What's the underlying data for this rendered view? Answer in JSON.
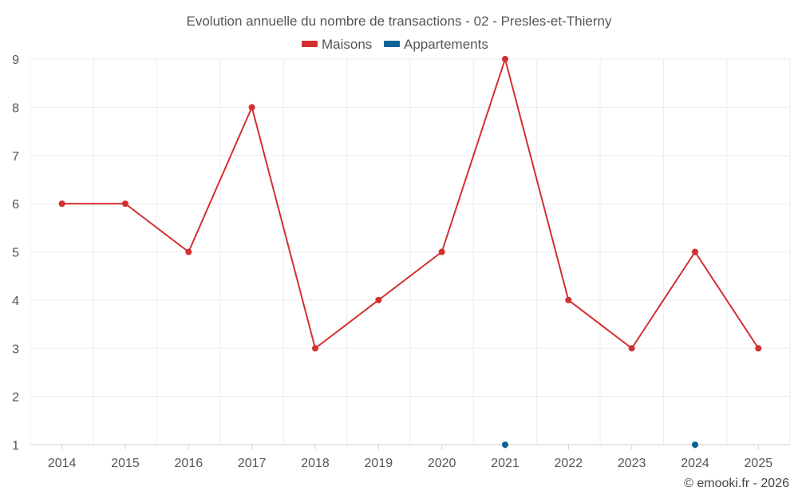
{
  "chart_data": {
    "type": "line",
    "title": "Evolution annuelle du nombre de transactions - 02 - Presles-et-Thierny",
    "categories": [
      "2014",
      "2015",
      "2016",
      "2017",
      "2018",
      "2019",
      "2020",
      "2021",
      "2022",
      "2023",
      "2024",
      "2025"
    ],
    "yticks": [
      "1",
      "2",
      "3",
      "4",
      "5",
      "6",
      "7",
      "8",
      "9"
    ],
    "ylim": [
      1,
      9
    ],
    "grid": true,
    "legend_position": "top-center",
    "series": [
      {
        "name": "Maisons",
        "color": "#d32f2f",
        "values": [
          6,
          6,
          5,
          8,
          3,
          4,
          5,
          9,
          4,
          3,
          5,
          3
        ]
      },
      {
        "name": "Appartements",
        "color": "#0a6296",
        "values": [
          null,
          null,
          null,
          null,
          null,
          null,
          null,
          1,
          null,
          null,
          1,
          null
        ]
      }
    ]
  },
  "credit": "© emooki.fr - 2026"
}
